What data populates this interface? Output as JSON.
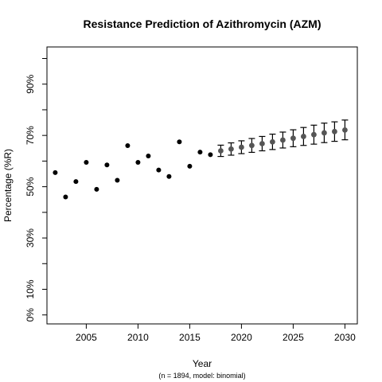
{
  "chart_data": {
    "type": "scatter",
    "title": "Resistance Prediction of Azithromycin (AZM)",
    "xlabel": "Year",
    "ylabel": "Percentage (%R)",
    "footnote": "(n = 1894, model: binomial)",
    "xlim": [
      2001.2,
      2031.2
    ],
    "ylim": [
      -3.5,
      104.5
    ],
    "x_ticks": [
      2005,
      2010,
      2015,
      2020,
      2025,
      2030
    ],
    "y_ticks": [
      0,
      10,
      20,
      30,
      40,
      50,
      60,
      70,
      80,
      90,
      100
    ],
    "y_tick_labels": [
      {
        "value": 0,
        "label": "0%"
      },
      {
        "value": 10,
        "label": "10%"
      },
      {
        "value": 30,
        "label": "30%"
      },
      {
        "value": 50,
        "label": "50%"
      },
      {
        "value": 70,
        "label": "70%"
      },
      {
        "value": 90,
        "label": "90%"
      }
    ],
    "grid": false,
    "colors": {
      "observed": "#000000",
      "predicted": "#555555"
    },
    "observed": {
      "x": [
        2002,
        2003,
        2004,
        2005,
        2006,
        2007,
        2008,
        2009,
        2010,
        2011,
        2012,
        2013,
        2014,
        2015,
        2016,
        2017
      ],
      "y": [
        55.5,
        46.0,
        52.0,
        59.5,
        49.0,
        58.5,
        52.5,
        66.0,
        59.5,
        62.0,
        56.5,
        54.0,
        67.5,
        58.0,
        63.5,
        62.5
      ]
    },
    "predicted": {
      "x": [
        2018,
        2019,
        2020,
        2021,
        2022,
        2023,
        2024,
        2025,
        2026,
        2027,
        2028,
        2029,
        2030
      ],
      "y": [
        64.0,
        64.7,
        65.4,
        66.1,
        66.8,
        67.5,
        68.2,
        68.9,
        69.6,
        70.3,
        71.0,
        71.5,
        72.1
      ],
      "lower": [
        61.8,
        62.3,
        62.9,
        63.4,
        64.0,
        64.5,
        65.1,
        65.6,
        66.1,
        66.6,
        67.2,
        67.7,
        68.3
      ],
      "upper": [
        66.2,
        67.1,
        67.9,
        68.8,
        69.6,
        70.5,
        71.3,
        72.2,
        73.1,
        74.0,
        74.8,
        75.3,
        76.0
      ]
    }
  }
}
